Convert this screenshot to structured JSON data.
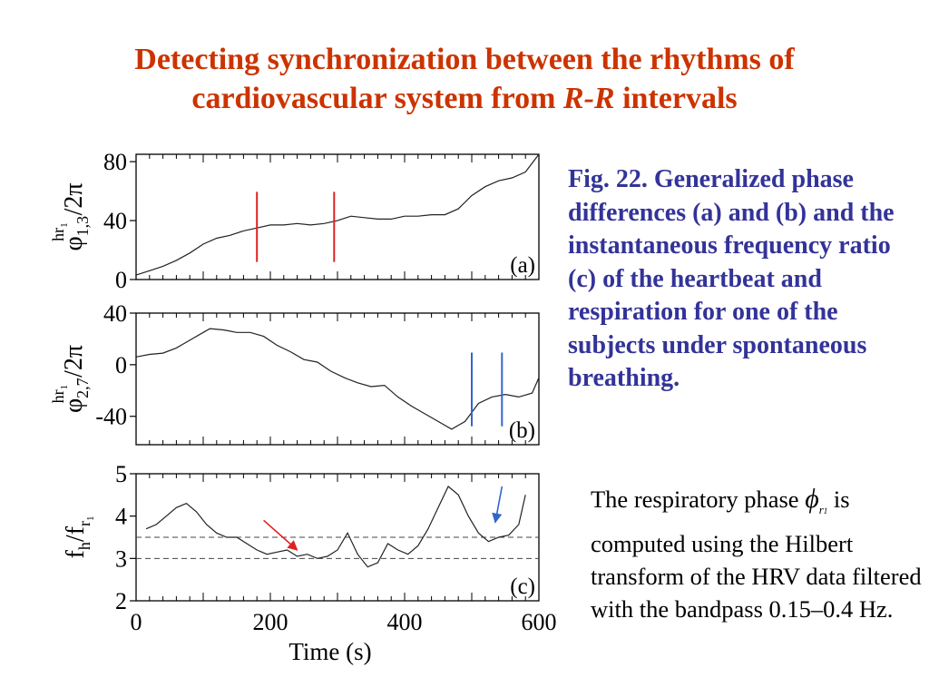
{
  "slide": {
    "title_line1": "Detecting synchronization between the rhythms of",
    "title_line2_pre": "cardiovascular system from ",
    "title_line2_italic": "R-R",
    "title_line2_post": " intervals",
    "caption": "Fig. 22. Generalized phase differences (a) and (b) and the instantaneous frequency ratio (c) of the heartbeat and respiration for one of the subjects under spontaneous breathing.",
    "desc_pre": "The respiratory phase",
    "desc_phi": "ϕ",
    "desc_phi_sub": "r",
    "desc_phi_subsub": "1",
    "desc_post": "is computed using the Hilbert transform of the HRV data filtered with the bandpass 0.15–0.4 Hz."
  },
  "colors": {
    "title": "#cc3300",
    "caption": "#333399",
    "red_marker": "#dd2222",
    "blue_marker": "#3366cc"
  },
  "chart_data": [
    {
      "type": "line",
      "panel_label": "(a)",
      "ylabel_main": "φ",
      "ylabel_sub": "1,3",
      "ylabel_sup": "hr",
      "ylabel_supsub": "1",
      "ylabel_post": "/2π",
      "ylim": [
        0,
        85
      ],
      "yticks": [
        0,
        40,
        80
      ],
      "xlim": [
        0,
        600
      ],
      "x": [
        0,
        20,
        40,
        60,
        80,
        100,
        120,
        140,
        160,
        180,
        200,
        220,
        240,
        260,
        280,
        300,
        320,
        340,
        360,
        380,
        400,
        420,
        440,
        460,
        480,
        500,
        520,
        540,
        560,
        580,
        600
      ],
      "y": [
        3,
        6,
        9,
        13,
        18,
        24,
        28,
        30,
        33,
        35,
        37,
        37,
        38,
        37,
        38,
        40,
        43,
        42,
        41,
        41,
        43,
        43,
        44,
        44,
        48,
        57,
        63,
        67,
        69,
        73,
        85
      ],
      "vlines": [
        {
          "x": 180,
          "color": "red"
        },
        {
          "x": 295,
          "color": "red"
        }
      ]
    },
    {
      "type": "line",
      "panel_label": "(b)",
      "ylabel_main": "φ",
      "ylabel_sub": "2,7",
      "ylabel_sup": "hr",
      "ylabel_supsub": "1",
      "ylabel_post": "/2π",
      "ylim": [
        -62,
        40
      ],
      "yticks": [
        -40,
        0,
        40
      ],
      "xlim": [
        0,
        600
      ],
      "x": [
        0,
        20,
        40,
        60,
        80,
        100,
        110,
        130,
        150,
        170,
        190,
        210,
        230,
        250,
        270,
        290,
        310,
        330,
        350,
        370,
        390,
        410,
        430,
        450,
        470,
        490,
        510,
        530,
        550,
        570,
        590,
        600
      ],
      "y": [
        6,
        8,
        9,
        13,
        19,
        25,
        28,
        27,
        25,
        25,
        22,
        15,
        10,
        4,
        2,
        -5,
        -10,
        -14,
        -17,
        -16,
        -25,
        -32,
        -38,
        -44,
        -50,
        -44,
        -30,
        -25,
        -23,
        -25,
        -22,
        -10
      ],
      "vlines": [
        {
          "x": 500,
          "color": "blue"
        },
        {
          "x": 545,
          "color": "blue"
        }
      ]
    },
    {
      "type": "line",
      "panel_label": "(c)",
      "ylabel_main": "f",
      "ylabel_sub": "h",
      "ylabel_mid": "/f",
      "ylabel_sub2": "r",
      "ylabel_subsub": "1",
      "ylim": [
        2,
        5
      ],
      "yticks": [
        2,
        3,
        4,
        5
      ],
      "xlim": [
        0,
        600
      ],
      "xticks": [
        0,
        200,
        400,
        600
      ],
      "xlabel": "Time (s)",
      "x": [
        15,
        30,
        45,
        60,
        75,
        90,
        105,
        120,
        135,
        150,
        165,
        180,
        195,
        210,
        225,
        240,
        255,
        270,
        285,
        300,
        315,
        330,
        345,
        360,
        375,
        390,
        405,
        420,
        435,
        450,
        465,
        480,
        495,
        510,
        525,
        540,
        555,
        570,
        580
      ],
      "y": [
        3.7,
        3.8,
        4.0,
        4.2,
        4.3,
        4.1,
        3.8,
        3.6,
        3.5,
        3.5,
        3.35,
        3.2,
        3.1,
        3.15,
        3.2,
        3.05,
        3.1,
        3.0,
        3.05,
        3.2,
        3.6,
        3.1,
        2.8,
        2.9,
        3.35,
        3.2,
        3.1,
        3.3,
        3.7,
        4.2,
        4.7,
        4.5,
        4.0,
        3.6,
        3.4,
        3.5,
        3.55,
        3.8,
        4.5
      ],
      "hlines": [
        3.0,
        3.5
      ],
      "arrows": [
        {
          "color": "red",
          "from": [
            190,
            3.9
          ],
          "to": [
            240,
            3.2
          ]
        },
        {
          "color": "blue",
          "from": [
            545,
            4.7
          ],
          "to": [
            535,
            3.85
          ]
        }
      ]
    }
  ]
}
